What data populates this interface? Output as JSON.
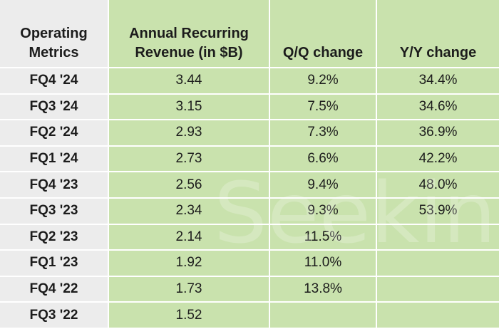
{
  "chart_data": {
    "type": "table",
    "columns": [
      "Operating Metrics",
      "Annual Recurring Revenue (in $B)",
      "Q/Q change",
      "Y/Y change"
    ],
    "header_lines": [
      [
        "Operating",
        "Metrics"
      ],
      [
        "Annual Recurring",
        "Revenue (in $B)"
      ],
      [
        "",
        "Q/Q change"
      ],
      [
        "",
        "Y/Y change"
      ]
    ],
    "rows": [
      [
        "FQ4 '24",
        "3.44",
        "9.2%",
        "34.4%"
      ],
      [
        "FQ3 '24",
        "3.15",
        "7.5%",
        "34.6%"
      ],
      [
        "FQ2 '24",
        "2.93",
        "7.3%",
        "36.9%"
      ],
      [
        "FQ1 '24",
        "2.73",
        "6.6%",
        "42.2%"
      ],
      [
        "FQ4 '23",
        "2.56",
        "9.4%",
        "48.0%"
      ],
      [
        "FQ3 '23",
        "2.34",
        "9.3%",
        "53.9%"
      ],
      [
        "FQ2 '23",
        "2.14",
        "11.5%",
        ""
      ],
      [
        "FQ1 '23",
        "1.92",
        "11.0%",
        ""
      ],
      [
        "FQ4 '22",
        "1.73",
        "13.8%",
        ""
      ],
      [
        "FQ3 '22",
        "1.52",
        "",
        ""
      ]
    ]
  },
  "watermark": "Seeking Alpha",
  "colors": {
    "label_bg": "#ececec",
    "data_bg": "#c9e2ad",
    "border": "#ffffff",
    "text": "#1c1c1c"
  }
}
